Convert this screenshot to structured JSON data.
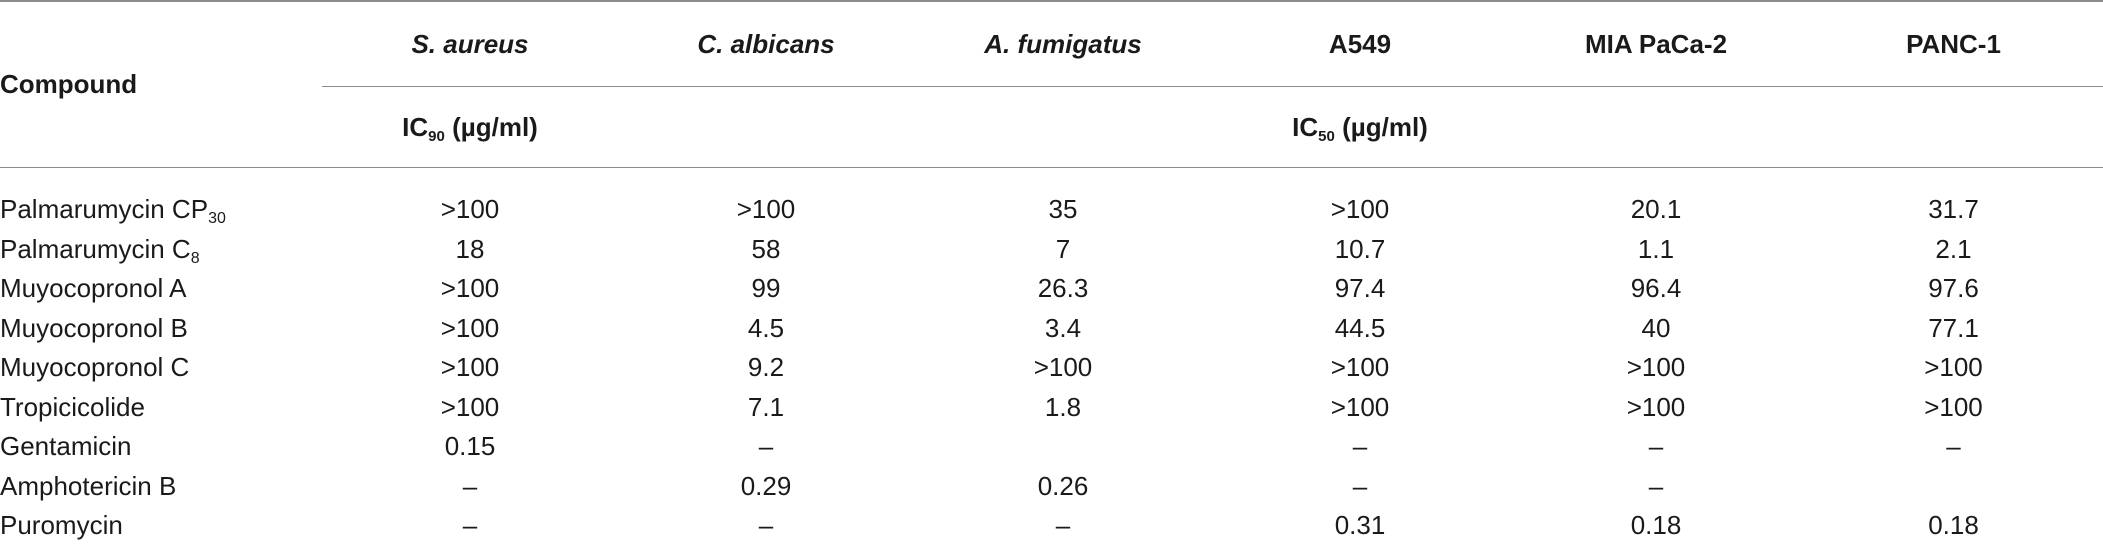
{
  "header": {
    "compound_label": "Compound",
    "columns": [
      "S. aureus",
      "C. albicans",
      "A. fumigatus",
      "A549",
      "MIA PaCa-2",
      "PANC-1"
    ],
    "units": {
      "ic90_prefix": "IC",
      "ic90_sub": "90",
      "ic90_unit": " (µg/ml)",
      "ic50_prefix": "IC",
      "ic50_sub": "50",
      "ic50_unit": " (µg/ml)"
    }
  },
  "rows": [
    {
      "name": "Palmarumycin CP",
      "name_sub": "30",
      "values": [
        ">100",
        ">100",
        "35",
        ">100",
        "20.1",
        "31.7"
      ]
    },
    {
      "name": "Palmarumycin C",
      "name_sub": "8",
      "values": [
        "18",
        "58",
        "7",
        "10.7",
        "1.1",
        "2.1"
      ]
    },
    {
      "name": "Muyocopronol A",
      "name_sub": "",
      "values": [
        ">100",
        "99",
        "26.3",
        "97.4",
        "96.4",
        "97.6"
      ]
    },
    {
      "name": "Muyocopronol B",
      "name_sub": "",
      "values": [
        ">100",
        "4.5",
        "3.4",
        "44.5",
        "40",
        "77.1"
      ]
    },
    {
      "name": "Muyocopronol C",
      "name_sub": "",
      "values": [
        ">100",
        "9.2",
        ">100",
        ">100",
        ">100",
        ">100"
      ]
    },
    {
      "name": "Tropicicolide",
      "name_sub": "",
      "values": [
        ">100",
        "7.1",
        "1.8",
        ">100",
        ">100",
        ">100"
      ]
    },
    {
      "name": "Gentamicin",
      "name_sub": "",
      "values": [
        "0.15",
        "–",
        "",
        "–",
        "–",
        "–"
      ]
    },
    {
      "name": "Amphotericin B",
      "name_sub": "",
      "values": [
        "–",
        "0.29",
        "0.26",
        "–",
        "–",
        ""
      ]
    },
    {
      "name": "Puromycin",
      "name_sub": "",
      "values": [
        "–",
        "–",
        "–",
        "0.31",
        "0.18",
        "0.18"
      ]
    }
  ]
}
